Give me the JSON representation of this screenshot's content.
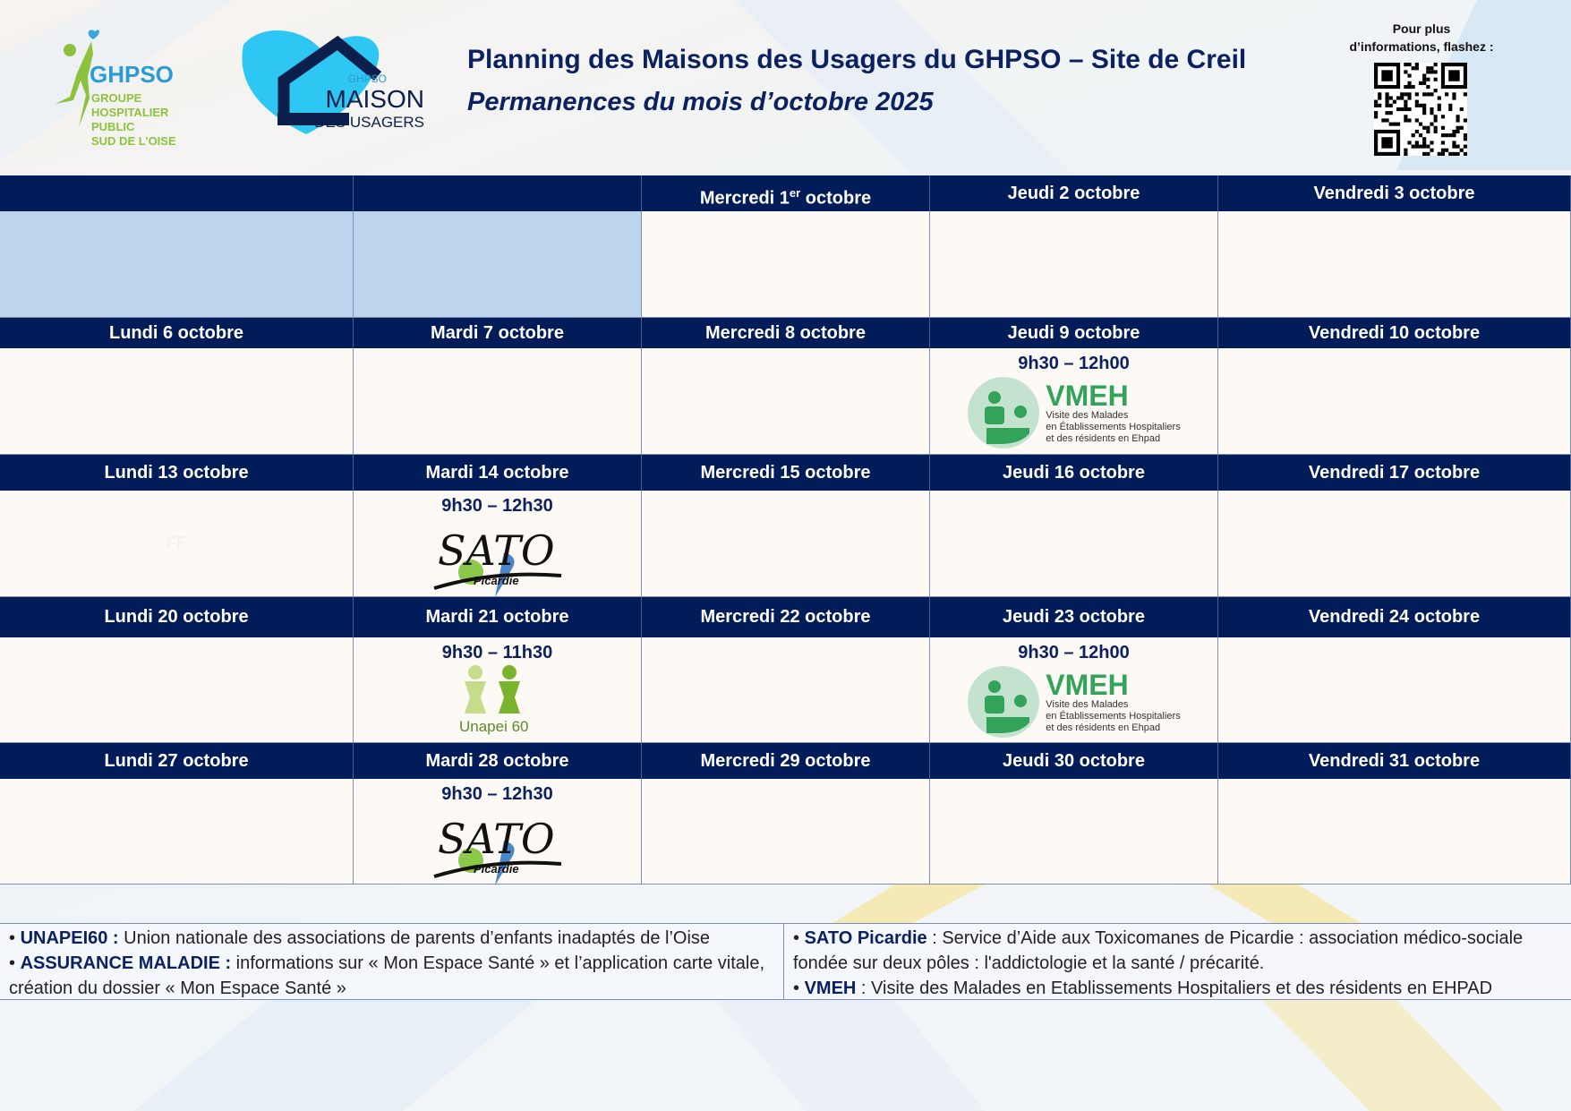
{
  "header": {
    "title": "Planning des Maisons des Usagers du GHPSO – Site de Creil",
    "subtitle": "Permanences du mois d’octobre 2025",
    "qr_label_line1": "Pour plus",
    "qr_label_line2": "d’informations, flashez :",
    "logo_ghpso": {
      "name": "GHPSO",
      "lines": [
        "GROUPE",
        "HOSPITALIER",
        "PUBLIC",
        "SUD DE L’OISE"
      ]
    },
    "logo_maison": {
      "small": "GHPSO",
      "big": "MAISON",
      "sub": "DES USAGERS"
    }
  },
  "colors": {
    "navy": "#021c5a",
    "cell": "#fdf9f4",
    "blank": "#bdd4ec",
    "green": "#34a35a"
  },
  "logos": {
    "vmeh": {
      "name": "VMEH",
      "lines": [
        "Visite des Malades",
        "en Établissements Hospitaliers",
        "et des résidents en Ehpad"
      ]
    },
    "sato": {
      "name": "SATO",
      "sub": "Picardie"
    },
    "unapei": {
      "name": "Unapei 60"
    }
  },
  "weeks": [
    {
      "days": [
        {
          "label": "",
          "blank": true
        },
        {
          "label": "",
          "blank": true
        },
        {
          "label": "Mercredi 1",
          "sup": "er",
          "label_after": " octobre"
        },
        {
          "label": "Jeudi 2 octobre"
        },
        {
          "label": "Vendredi 3 octobre"
        }
      ]
    },
    {
      "days": [
        {
          "label": "Lundi 6 octobre"
        },
        {
          "label": "Mardi 7 octobre"
        },
        {
          "label": "Mercredi 8 octobre"
        },
        {
          "label": "Jeudi 9 octobre",
          "time": "9h30 – 12h00",
          "logo": "vmeh"
        },
        {
          "label": "Vendredi 10 octobre"
        }
      ]
    },
    {
      "days": [
        {
          "label": "Lundi 13 octobre",
          "note": "FF"
        },
        {
          "label": "Mardi 14 octobre",
          "time": "9h30 – 12h30",
          "logo": "sato"
        },
        {
          "label": "Mercredi 15 octobre"
        },
        {
          "label": "Jeudi 16 octobre"
        },
        {
          "label": "Vendredi 17 octobre"
        }
      ]
    },
    {
      "days": [
        {
          "label": "Lundi 20 octobre"
        },
        {
          "label": "Mardi 21 octobre",
          "time": "9h30 – 11h30",
          "logo": "unapei"
        },
        {
          "label": "Mercredi 22 octobre"
        },
        {
          "label": "Jeudi 23 octobre",
          "time": "9h30 – 12h00",
          "logo": "vmeh"
        },
        {
          "label": "Vendredi 24 octobre"
        }
      ]
    },
    {
      "days": [
        {
          "label": "Lundi 27 octobre"
        },
        {
          "label": "Mardi 28 octobre",
          "time": "9h30 – 12h30",
          "logo": "sato"
        },
        {
          "label": "Mercredi 29 octobre"
        },
        {
          "label": "Jeudi 30 octobre"
        },
        {
          "label": "Vendredi 31 octobre"
        }
      ]
    }
  ],
  "legend": {
    "left": [
      {
        "term": "UNAPEI60 :",
        "text": " Union nationale des associations de parents d’enfants inadaptés de l’Oise"
      },
      {
        "term": "ASSURANCE MALADIE :",
        "text": " informations sur « Mon Espace Santé » et l’application carte vitale, création du dossier « Mon Espace Santé »"
      }
    ],
    "right": [
      {
        "term": "SATO Picardie",
        "text": " :  Service d’Aide aux Toxicomanes de Picardie : association médico-sociale fondée sur deux pôles : l'addictologie et la santé / précarité."
      },
      {
        "term": "VMEH",
        "text": " : Visite des Malades en Etablissements Hospitaliers et des résidents en EHPAD"
      }
    ]
  }
}
